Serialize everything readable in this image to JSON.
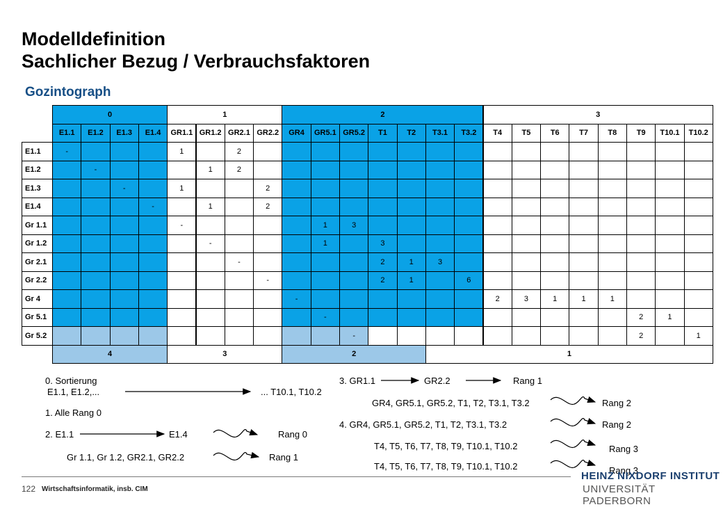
{
  "header": {
    "title_line1": "Modelldefinition",
    "title_line2": "Sachlicher Bezug / Verbrauchsfaktoren",
    "subtitle": "Gozintograph"
  },
  "matrix": {
    "group_headers": [
      {
        "label": "0",
        "span": 4,
        "color": "blue"
      },
      {
        "label": "1",
        "span": 4,
        "color": "white"
      },
      {
        "label": "2",
        "span": 7,
        "color": "blue"
      },
      {
        "label": "3",
        "span": 8,
        "color": "white"
      }
    ],
    "columns": [
      "E1.1",
      "E1.2",
      "E1.3",
      "E1.4",
      "GR1.1",
      "GR1.2",
      "GR2.1",
      "GR2.2",
      "GR4",
      "GR5.1",
      "GR5.2",
      "T1",
      "T2",
      "T3.1",
      "T3.2",
      "T4",
      "T5",
      "T6",
      "T7",
      "T8",
      "T9",
      "T10.1",
      "T10.2"
    ],
    "rows": [
      {
        "label": "E1.1",
        "cells": {
          "0": "-",
          "4": "1",
          "6": "2"
        }
      },
      {
        "label": "E1.2",
        "cells": {
          "1": "-",
          "5": "1",
          "6": "2"
        }
      },
      {
        "label": "E1.3",
        "cells": {
          "2": "-",
          "4": "1",
          "7": "2"
        }
      },
      {
        "label": "E1.4",
        "cells": {
          "3": "-",
          "5": "1",
          "7": "2"
        }
      },
      {
        "label": "Gr 1.1",
        "cells": {
          "4": "-",
          "9": "1",
          "10": "3"
        }
      },
      {
        "label": "Gr 1.2",
        "cells": {
          "5": "-",
          "9": "1",
          "11": "3"
        }
      },
      {
        "label": "Gr 2.1",
        "cells": {
          "6": "-",
          "11": "2",
          "12": "1",
          "13": "3"
        }
      },
      {
        "label": "Gr 2.2",
        "cells": {
          "7": "-",
          "11": "2",
          "12": "1",
          "14": "6"
        }
      },
      {
        "label": "Gr 4",
        "cells": {
          "8": "-",
          "15": "2",
          "16": "3",
          "17": "1",
          "18": "1",
          "19": "1"
        }
      },
      {
        "label": "Gr 5.1",
        "cells": {
          "9": "-",
          "20": "2",
          "21": "1"
        }
      },
      {
        "label": "Gr 5.2",
        "cells": {
          "10": "-",
          "20": "2",
          "22": "1"
        }
      }
    ],
    "rank_row": [
      {
        "label": "4",
        "span": 4,
        "color": "lblue"
      },
      {
        "label": "3",
        "span": 4,
        "color": "white"
      },
      {
        "label": "2",
        "span": 5,
        "color": "lblue"
      },
      {
        "label": "1",
        "span": 10,
        "color": "white"
      }
    ],
    "colors": {
      "blue": "#0aa2e6",
      "lblue": "#9cc8e8",
      "white": "#ffffff"
    }
  },
  "notes": {
    "n0a": "0. Sortierung",
    "n0b": "E1.1, E1.2,...",
    "n0c": "... T10.1, T10.2",
    "n1": "1. Alle Rang 0",
    "n2a": "2. E1.1",
    "n2b": "E1.4",
    "n2c": "Rang 0",
    "n2d": "Gr 1.1, Gr 1.2,  GR2.1, GR2.2",
    "n2e": "Rang 1",
    "n3a": "3. GR1.1",
    "n3b": "GR2.2",
    "n3c": "Rang 1",
    "n3d": "GR4, GR5.1, GR5.2, T1, T2, T3.1, T3.2",
    "n3e": "Rang 2",
    "n4a": "4. GR4, GR5.1, GR5.2, T1, T2, T3.1, T3.2",
    "n4b": "Rang 2",
    "n4c": "T4, T5, T6, T7, T8, T9, T10.1, T10.2",
    "n4d": "Rang 3",
    "n4e": "T4, T5, T6, T7, T8, T9, T10.1, T10.2",
    "n4f": "Rang 3"
  },
  "footer": {
    "page": "122",
    "text": "Wirtschaftsinformatik, insb. CIM",
    "logo_line1": "HEINZ NIXDORF INSTITUT",
    "logo_line2": "UNIVERSITÄT PADERBORN"
  }
}
